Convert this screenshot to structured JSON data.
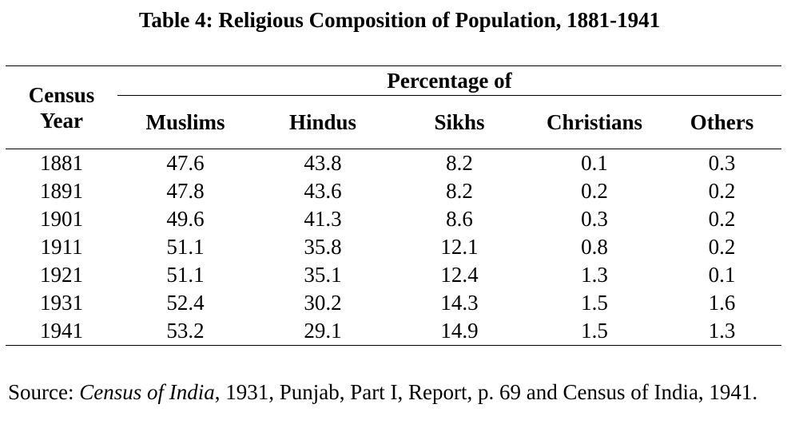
{
  "title": "Table 4: Religious Composition of Population, 1881-1941",
  "table": {
    "group_header": "Percentage of",
    "year_header_line1": "Census",
    "year_header_line2": "Year",
    "columns": [
      "Muslims",
      "Hindus",
      "Sikhs",
      "Christians",
      "Others"
    ],
    "rows": [
      [
        "1881",
        "47.6",
        "43.8",
        "8.2",
        "0.1",
        "0.3"
      ],
      [
        "1891",
        "47.8",
        "43.6",
        "8.2",
        "0.2",
        "0.2"
      ],
      [
        "1901",
        "49.6",
        "41.3",
        "8.6",
        "0.3",
        "0.2"
      ],
      [
        "1911",
        "51.1",
        "35.8",
        "12.1",
        "0.8",
        "0.2"
      ],
      [
        "1921",
        "51.1",
        "35.1",
        "12.4",
        "1.3",
        "0.1"
      ],
      [
        "1931",
        "52.4",
        "30.2",
        "14.3",
        "1.5",
        "1.6"
      ],
      [
        "1941",
        "53.2",
        "29.1",
        "14.9",
        "1.5",
        "1.3"
      ]
    ]
  },
  "source": {
    "prefix": "Source: ",
    "italic": "Census of India",
    "rest": ", 1931, Punjab, Part I, Report, p. 69 and Census of India, 1941."
  }
}
